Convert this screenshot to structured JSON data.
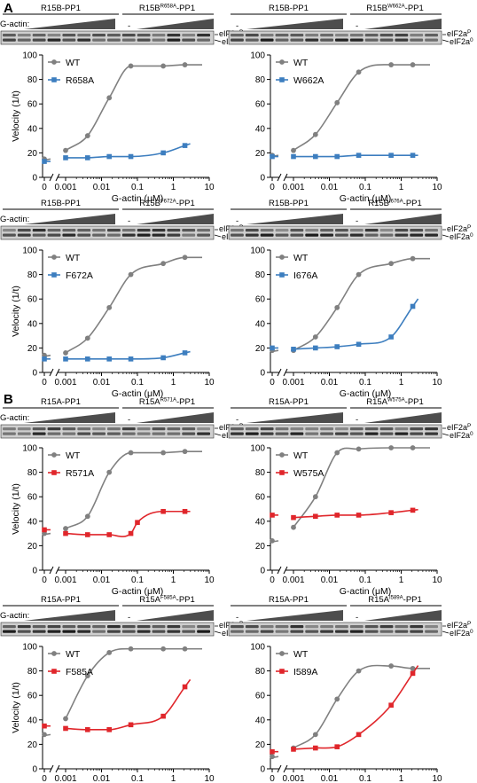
{
  "panel_labels": [
    "A",
    "B"
  ],
  "gel_row_label": "G-actin:",
  "minus_sign": "-",
  "band_label_p": "eIF2a",
  "band_label_p_sup": "P",
  "band_label_0": "eIF2a",
  "band_label_0_sup": "0",
  "colors": {
    "wt": "#808080",
    "blue": "#3d7ebf",
    "red": "#e0262b",
    "axis": "#000000"
  },
  "chart_data": [
    {
      "type": "line",
      "panel": "A",
      "x_scale": "log-with-zero",
      "xlabel": "G-actin (μM)",
      "ylabel": "Velocity (1/t)",
      "ylim": [
        0,
        100
      ],
      "yticks": [
        0,
        20,
        40,
        60,
        80,
        100
      ],
      "xticks": [
        "0",
        "0.001",
        "0.01",
        "0.1",
        "1",
        "10"
      ],
      "construct_left": "R15B-PP1",
      "construct_right_base": "R15B",
      "construct_right_sup": "R658A",
      "construct_right_suffix": "-PP1",
      "series": [
        {
          "name": "WT",
          "color": "#808080",
          "marker": "circle",
          "zero_value": 15,
          "x": [
            0.001,
            0.0041,
            0.0164,
            0.0655,
            0.524,
            2.1
          ],
          "y": [
            22,
            34,
            65,
            91,
            91,
            92
          ]
        },
        {
          "name": "R658A",
          "color": "#3d7ebf",
          "marker": "square",
          "zero_value": 13,
          "x": [
            0.001,
            0.0041,
            0.0164,
            0.0655,
            0.524,
            2.1
          ],
          "y": [
            16,
            16,
            17,
            17,
            20,
            26
          ]
        }
      ]
    },
    {
      "type": "line",
      "panel": "A",
      "x_scale": "log-with-zero",
      "xlabel": "G-actin (μM)",
      "ylabel": "",
      "ylim": [
        0,
        100
      ],
      "yticks": [
        0,
        20,
        40,
        60,
        80,
        100
      ],
      "xticks": [
        "0",
        "0.001",
        "0.01",
        "0.1",
        "1",
        "10"
      ],
      "construct_left": "R15B-PP1",
      "construct_right_base": "R15B",
      "construct_right_sup": "W662A",
      "construct_right_suffix": "-PP1",
      "series": [
        {
          "name": "WT",
          "color": "#808080",
          "marker": "circle",
          "zero_value": 18,
          "x": [
            0.001,
            0.0041,
            0.0164,
            0.0655,
            0.524,
            2.1
          ],
          "y": [
            22,
            35,
            61,
            86,
            92,
            92
          ]
        },
        {
          "name": "W662A",
          "color": "#3d7ebf",
          "marker": "square",
          "zero_value": 17,
          "x": [
            0.001,
            0.0041,
            0.0164,
            0.0655,
            0.524,
            2.1
          ],
          "y": [
            17,
            17,
            17,
            18,
            18,
            18
          ]
        }
      ]
    },
    {
      "type": "line",
      "panel": "A",
      "x_scale": "log-with-zero",
      "xlabel": "G-actin (μM)",
      "ylabel": "Velocity (1/t)",
      "ylim": [
        0,
        100
      ],
      "yticks": [
        0,
        20,
        40,
        60,
        80,
        100
      ],
      "xticks": [
        "0",
        "0.001",
        "0.01",
        "0.1",
        "1",
        "10"
      ],
      "construct_left": "R15B-PP1",
      "construct_right_base": "R15B",
      "construct_right_sup": "F672A",
      "construct_right_suffix": "-PP1",
      "series": [
        {
          "name": "WT",
          "color": "#808080",
          "marker": "circle",
          "zero_value": 14,
          "x": [
            0.001,
            0.0041,
            0.0164,
            0.0655,
            0.524,
            2.1
          ],
          "y": [
            16,
            28,
            53,
            80,
            89,
            94
          ]
        },
        {
          "name": "F672A",
          "color": "#3d7ebf",
          "marker": "square",
          "zero_value": 11,
          "x": [
            0.001,
            0.0041,
            0.0164,
            0.0655,
            0.524,
            2.1
          ],
          "y": [
            11,
            11,
            11,
            11,
            12,
            16
          ]
        }
      ]
    },
    {
      "type": "line",
      "panel": "A",
      "x_scale": "log-with-zero",
      "xlabel": "G-actin (μM)",
      "ylabel": "",
      "ylim": [
        0,
        100
      ],
      "yticks": [
        0,
        20,
        40,
        60,
        80,
        100
      ],
      "xticks": [
        "0",
        "0.001",
        "0.01",
        "0.1",
        "1",
        "10"
      ],
      "construct_left": "R15B-PP1",
      "construct_right_base": "R15B",
      "construct_right_sup": "I676A",
      "construct_right_suffix": "-PP1",
      "series": [
        {
          "name": "WT",
          "color": "#808080",
          "marker": "circle",
          "zero_value": 18,
          "x": [
            0.001,
            0.0041,
            0.0164,
            0.0655,
            0.524,
            2.1
          ],
          "y": [
            18,
            29,
            53,
            80,
            89,
            93
          ]
        },
        {
          "name": "I676A",
          "color": "#3d7ebf",
          "marker": "square",
          "zero_value": 20,
          "x": [
            0.001,
            0.0041,
            0.0164,
            0.0655,
            0.524,
            2.1
          ],
          "y": [
            19,
            20,
            21,
            23,
            29,
            54
          ]
        }
      ]
    },
    {
      "type": "line",
      "panel": "B",
      "x_scale": "log-with-zero",
      "xlabel": "G-actin (μM)",
      "ylabel": "Velocity (1/t)",
      "ylim": [
        0,
        100
      ],
      "yticks": [
        0,
        20,
        40,
        60,
        80,
        100
      ],
      "xticks": [
        "0",
        "0.001",
        "0.01",
        "0.1",
        "1",
        "10"
      ],
      "construct_left": "R15A-PP1",
      "construct_right_base": "R15A",
      "construct_right_sup": "R571A",
      "construct_right_suffix": "-PP1",
      "series": [
        {
          "name": "WT",
          "color": "#808080",
          "marker": "circle",
          "zero_value": 30,
          "x": [
            0.001,
            0.0041,
            0.0164,
            0.0655,
            0.524,
            2.1
          ],
          "y": [
            34,
            44,
            80,
            96,
            96,
            97
          ]
        },
        {
          "name": "R571A",
          "color": "#e0262b",
          "marker": "square",
          "zero_value": 33,
          "x": [
            0.001,
            0.0041,
            0.0164,
            0.0655,
            0.1,
            0.524,
            2.1
          ],
          "y": [
            30,
            29,
            29,
            30,
            39,
            48,
            48
          ]
        }
      ]
    },
    {
      "type": "line",
      "panel": "B",
      "x_scale": "log-with-zero",
      "xlabel": "G-actin (μM)",
      "ylabel": "",
      "ylim": [
        0,
        100
      ],
      "yticks": [
        0,
        20,
        40,
        60,
        80,
        100
      ],
      "xticks": [
        "0",
        "0.001",
        "0.01",
        "0.1",
        "1",
        "10"
      ],
      "construct_left": "R15A-PP1",
      "construct_right_base": "R15A",
      "construct_right_sup": "W575A",
      "construct_right_suffix": "-PP1",
      "series": [
        {
          "name": "WT",
          "color": "#808080",
          "marker": "circle",
          "zero_value": 24,
          "x": [
            0.001,
            0.0041,
            0.0164,
            0.0655,
            0.524,
            2.1
          ],
          "y": [
            35,
            60,
            96,
            99,
            100,
            100
          ]
        },
        {
          "name": "W575A",
          "color": "#e0262b",
          "marker": "square",
          "zero_value": 45,
          "x": [
            0.001,
            0.0041,
            0.0164,
            0.0655,
            0.524,
            2.1
          ],
          "y": [
            43,
            44,
            45,
            45,
            47,
            49
          ]
        }
      ]
    },
    {
      "type": "line",
      "panel": "B",
      "x_scale": "log-with-zero",
      "xlabel": "G-actin (μM)",
      "ylabel": "Velocity (1/t)",
      "ylim": [
        0,
        100
      ],
      "yticks": [
        0,
        20,
        40,
        60,
        80,
        100
      ],
      "xticks": [
        "0",
        "0.001",
        "0.01",
        "0.1",
        "1",
        "10"
      ],
      "construct_left": "R15A-PP1",
      "construct_right_base": "R15A",
      "construct_right_sup": "F585A",
      "construct_right_suffix": "-PP1",
      "series": [
        {
          "name": "WT",
          "color": "#808080",
          "marker": "circle",
          "zero_value": 28,
          "x": [
            0.001,
            0.0041,
            0.0164,
            0.0655,
            0.524,
            2.1
          ],
          "y": [
            41,
            76,
            95,
            98,
            98,
            98
          ]
        },
        {
          "name": "F585A",
          "color": "#e0262b",
          "marker": "square",
          "zero_value": 35,
          "x": [
            0.001,
            0.0041,
            0.0164,
            0.0655,
            0.524,
            2.1
          ],
          "y": [
            33,
            32,
            32,
            36,
            43,
            67
          ]
        }
      ]
    },
    {
      "type": "line",
      "panel": "B",
      "x_scale": "log-with-zero",
      "xlabel": "G-actin (μM)",
      "ylabel": "",
      "ylim": [
        0,
        100
      ],
      "yticks": [
        0,
        20,
        40,
        60,
        80,
        100
      ],
      "xticks": [
        "0",
        "0.001",
        "0.01",
        "0.1",
        "1",
        "10"
      ],
      "construct_left": "R15A-PP1",
      "construct_right_base": "R15A",
      "construct_right_sup": "I589A",
      "construct_right_suffix": "-PP1",
      "series": [
        {
          "name": "WT",
          "color": "#808080",
          "marker": "circle",
          "zero_value": 10,
          "x": [
            0.001,
            0.0041,
            0.0164,
            0.0655,
            0.524,
            2.1
          ],
          "y": [
            17,
            28,
            57,
            80,
            84,
            82
          ]
        },
        {
          "name": "I589A",
          "color": "#e0262b",
          "marker": "square",
          "zero_value": 14,
          "x": [
            0.001,
            0.0041,
            0.0164,
            0.0655,
            0.524,
            2.1
          ],
          "y": [
            16,
            17,
            18,
            28,
            52,
            78
          ]
        }
      ]
    }
  ]
}
